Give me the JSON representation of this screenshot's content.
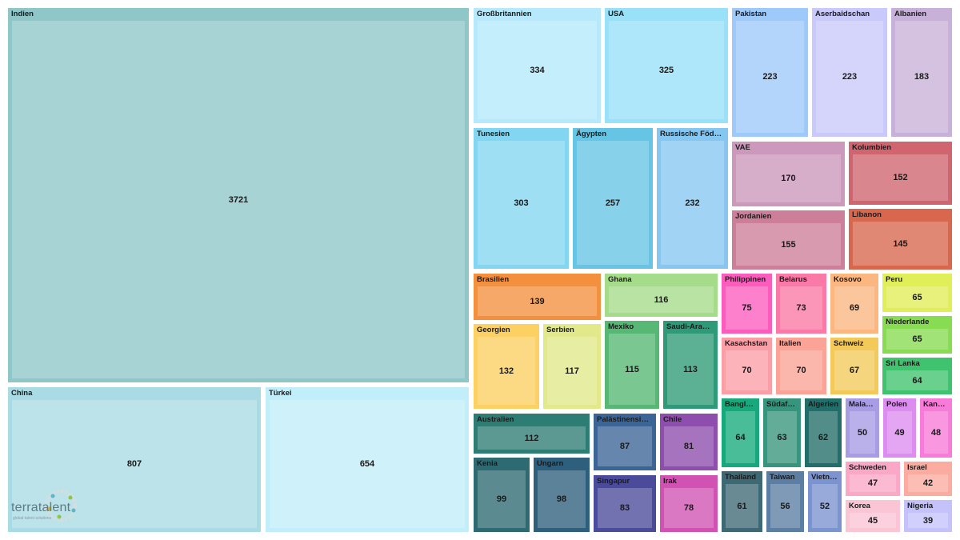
{
  "chart_data": {
    "type": "treemap",
    "title": "",
    "items": [
      {
        "label": "Indien",
        "value": 3721,
        "color": "#8fc7c9"
      },
      {
        "label": "China",
        "value": 807,
        "color": "#a8dbe3"
      },
      {
        "label": "Türkei",
        "value": 654,
        "color": "#c2eef9"
      },
      {
        "label": "Großbritannien",
        "value": 334,
        "color": "#b5e9fb"
      },
      {
        "label": "USA",
        "value": 325,
        "color": "#98e1f8"
      },
      {
        "label": "Tunesien",
        "value": 303,
        "color": "#83d6f1"
      },
      {
        "label": "Ägypten",
        "value": 257,
        "color": "#66c4e4"
      },
      {
        "label": "Russische Föderat...",
        "value": 232,
        "color": "#86c7f1"
      },
      {
        "label": "Pakistan",
        "value": 223,
        "color": "#9ec9fb"
      },
      {
        "label": "Aserbaidschan",
        "value": 223,
        "color": "#c9c9fb"
      },
      {
        "label": "Albanien",
        "value": 183,
        "color": "#c8b1d8"
      },
      {
        "label": "VAE",
        "value": 170,
        "color": "#cc98bb"
      },
      {
        "label": "Kolumbien",
        "value": 152,
        "color": "#d0646f"
      },
      {
        "label": "Jordanien",
        "value": 155,
        "color": "#cd7e98"
      },
      {
        "label": "Libanon",
        "value": 145,
        "color": "#d9674e"
      },
      {
        "label": "Brasilien",
        "value": 139,
        "color": "#f3903e"
      },
      {
        "label": "Ghana",
        "value": 116,
        "color": "#a4dc8a"
      },
      {
        "label": "Georgien",
        "value": 132,
        "color": "#fcd062"
      },
      {
        "label": "Serbien",
        "value": 117,
        "color": "#e1e98a"
      },
      {
        "label": "Mexiko",
        "value": 115,
        "color": "#56b874"
      },
      {
        "label": "Saudi-Arabien",
        "value": 113,
        "color": "#2f9a77"
      },
      {
        "label": "Australien",
        "value": 112,
        "color": "#2e7d74"
      },
      {
        "label": "Palästinensisch...",
        "value": 87,
        "color": "#3c6597"
      },
      {
        "label": "Chile",
        "value": 81,
        "color": "#8e4eae"
      },
      {
        "label": "Kenia",
        "value": 99,
        "color": "#2d6a72"
      },
      {
        "label": "Ungarn",
        "value": 98,
        "color": "#2e5f7c"
      },
      {
        "label": "Singapur",
        "value": 83,
        "color": "#4b4b9c"
      },
      {
        "label": "Irak",
        "value": 78,
        "color": "#d152b2"
      },
      {
        "label": "Philippinen",
        "value": 75,
        "color": "#fb5dbd"
      },
      {
        "label": "Belarus",
        "value": 73,
        "color": "#fb79a6"
      },
      {
        "label": "Kosovo",
        "value": 69,
        "color": "#fcb680"
      },
      {
        "label": "Peru",
        "value": 65,
        "color": "#e0ee57"
      },
      {
        "label": "Niederlande",
        "value": 65,
        "color": "#88dc52"
      },
      {
        "label": "Kasachstan",
        "value": 70,
        "color": "#fb9fa7"
      },
      {
        "label": "Italien",
        "value": 70,
        "color": "#fba396"
      },
      {
        "label": "Schweiz",
        "value": 67,
        "color": "#f3c95a"
      },
      {
        "label": "Sri Lanka",
        "value": 64,
        "color": "#3fc36e"
      },
      {
        "label": "Banglad...",
        "value": 64,
        "color": "#17a97b"
      },
      {
        "label": "Südafrika",
        "value": 63,
        "color": "#36957c"
      },
      {
        "label": "Algerien",
        "value": 62,
        "color": "#226e6a"
      },
      {
        "label": "Malays...",
        "value": 50,
        "color": "#a89ce4"
      },
      {
        "label": "Polen",
        "value": 49,
        "color": "#dd8df0"
      },
      {
        "label": "Kanada",
        "value": 48,
        "color": "#f87ad9"
      },
      {
        "label": "Schweden",
        "value": 47,
        "color": "#fba7c6"
      },
      {
        "label": "Israel",
        "value": 42,
        "color": "#fbaba0"
      },
      {
        "label": "Thailand",
        "value": 61,
        "color": "#3f6875"
      },
      {
        "label": "Taiwan",
        "value": 56,
        "color": "#5c7ea3"
      },
      {
        "label": "Vietnam",
        "value": 52,
        "color": "#7b93cf"
      },
      {
        "label": "Korea",
        "value": 45,
        "color": "#fbc5d6"
      },
      {
        "label": "Nigeria",
        "value": 39,
        "color": "#c5c2fb"
      }
    ]
  },
  "logo": {
    "text": "terratalent",
    "tagline": "global talent solutions"
  }
}
